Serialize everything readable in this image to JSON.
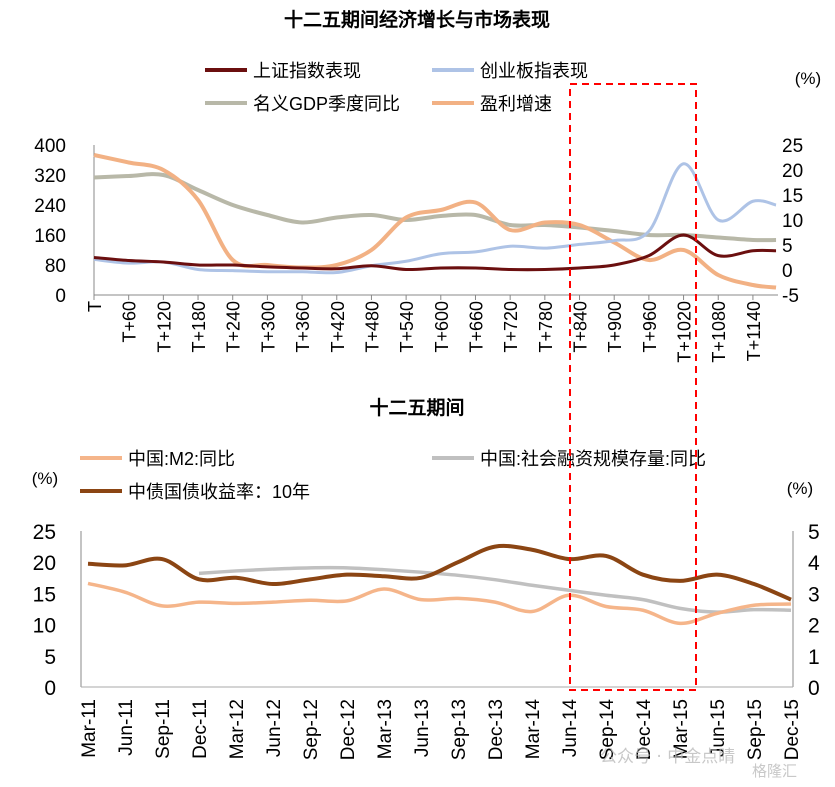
{
  "chart_data": [
    {
      "type": "line",
      "title": "十二五期间经济增长与市场表现",
      "right_unit": "(%)",
      "x": [
        0,
        60,
        120,
        180,
        240,
        300,
        360,
        420,
        480,
        540,
        600,
        660,
        720,
        780,
        840,
        900,
        960,
        1020,
        1080,
        1140,
        1180
      ],
      "xtick_labels": [
        "T",
        "T+60",
        "T+120",
        "T+180",
        "T+240",
        "T+300",
        "T+360",
        "T+420",
        "T+480",
        "T+540",
        "T+600",
        "T+660",
        "T+720",
        "T+780",
        "T+840",
        "T+900",
        "T+960",
        "T+1020",
        "T+1080",
        "T+1140"
      ],
      "ylim_left": [
        0,
        400
      ],
      "yticks_left": [
        "0",
        "80",
        "160",
        "240",
        "320",
        "400"
      ],
      "ylim_right": [
        -5,
        25
      ],
      "yticks_right": [
        "-5",
        "0",
        "5",
        "10",
        "15",
        "20",
        "25"
      ],
      "grid": false,
      "legend_placement": "top",
      "series": [
        {
          "name": "上证指数表现",
          "axis": "left",
          "color": "#6b0f0f",
          "values": [
            100,
            92,
            88,
            80,
            80,
            75,
            72,
            70,
            78,
            68,
            72,
            72,
            68,
            68,
            72,
            80,
            105,
            160,
            105,
            118,
            118
          ]
        },
        {
          "name": "创业板指表现",
          "axis": "left",
          "color": "#aec3e6",
          "values": [
            95,
            85,
            88,
            68,
            65,
            62,
            62,
            60,
            78,
            90,
            110,
            115,
            130,
            125,
            135,
            145,
            170,
            350,
            200,
            250,
            240
          ]
        },
        {
          "name": "名义GDP季度同比",
          "axis": "right",
          "color": "#b8b8a8",
          "values": [
            18.5,
            18.8,
            19.0,
            16,
            13,
            11,
            9.5,
            10.5,
            11,
            10,
            10.8,
            11,
            9,
            9,
            8.5,
            7.8,
            7,
            7,
            6.5,
            6,
            6
          ]
        },
        {
          "name": "盈利增速",
          "axis": "right",
          "color": "#f2b184",
          "values": [
            23,
            21.5,
            20,
            14,
            2,
            1,
            0.5,
            1,
            4,
            10.5,
            12,
            13.5,
            8,
            9.5,
            9,
            5.5,
            2,
            4,
            -1,
            -3,
            -3.5
          ]
        }
      ]
    },
    {
      "type": "line",
      "title": "十二五期间",
      "left_unit": "(%)",
      "right_unit": "(%)",
      "categories": [
        "Mar-11",
        "Jun-11",
        "Sep-11",
        "Dec-11",
        "Mar-12",
        "Jun-12",
        "Sep-12",
        "Dec-12",
        "Mar-13",
        "Jun-13",
        "Sep-13",
        "Dec-13",
        "Mar-14",
        "Jun-14",
        "Sep-14",
        "Dec-14",
        "Mar-15",
        "Jun-15",
        "Sep-15",
        "Dec-15"
      ],
      "ylim_left": [
        0,
        25
      ],
      "yticks_left": [
        "0",
        "5",
        "10",
        "15",
        "20",
        "25"
      ],
      "ylim_right": [
        0,
        5
      ],
      "yticks_right": [
        "0",
        "1",
        "2",
        "3",
        "4",
        "5"
      ],
      "grid": false,
      "legend_placement": "top",
      "series": [
        {
          "name": "中国:M2:同比",
          "axis": "left",
          "color": "#f5b58a",
          "values": [
            16.6,
            15.2,
            13.0,
            13.6,
            13.4,
            13.6,
            13.9,
            13.8,
            15.7,
            14.0,
            14.2,
            13.6,
            12.1,
            14.7,
            12.9,
            12.3,
            10.2,
            11.8,
            13.1,
            13.3
          ]
        },
        {
          "name": "中国:社会融资规模存量:同比",
          "axis": "left",
          "color": "#c0c0c0",
          "values": [
            null,
            null,
            null,
            18.2,
            18.6,
            18.9,
            19.1,
            19.1,
            18.8,
            18.4,
            17.9,
            17.2,
            16.3,
            15.5,
            14.7,
            14.0,
            12.6,
            12.0,
            12.4,
            12.3
          ]
        },
        {
          "name": "中债国债收益率：10年",
          "axis": "right",
          "color": "#8b4513",
          "values": [
            3.95,
            3.9,
            4.1,
            3.45,
            3.5,
            3.3,
            3.45,
            3.6,
            3.55,
            3.5,
            4.0,
            4.5,
            4.4,
            4.1,
            4.2,
            3.6,
            3.4,
            3.6,
            3.3,
            2.8
          ]
        }
      ]
    }
  ],
  "watermark": {
    "text1": "公众号 · 中金点睛",
    "text2": "格隆汇"
  },
  "highlight_color": "#ff0000"
}
